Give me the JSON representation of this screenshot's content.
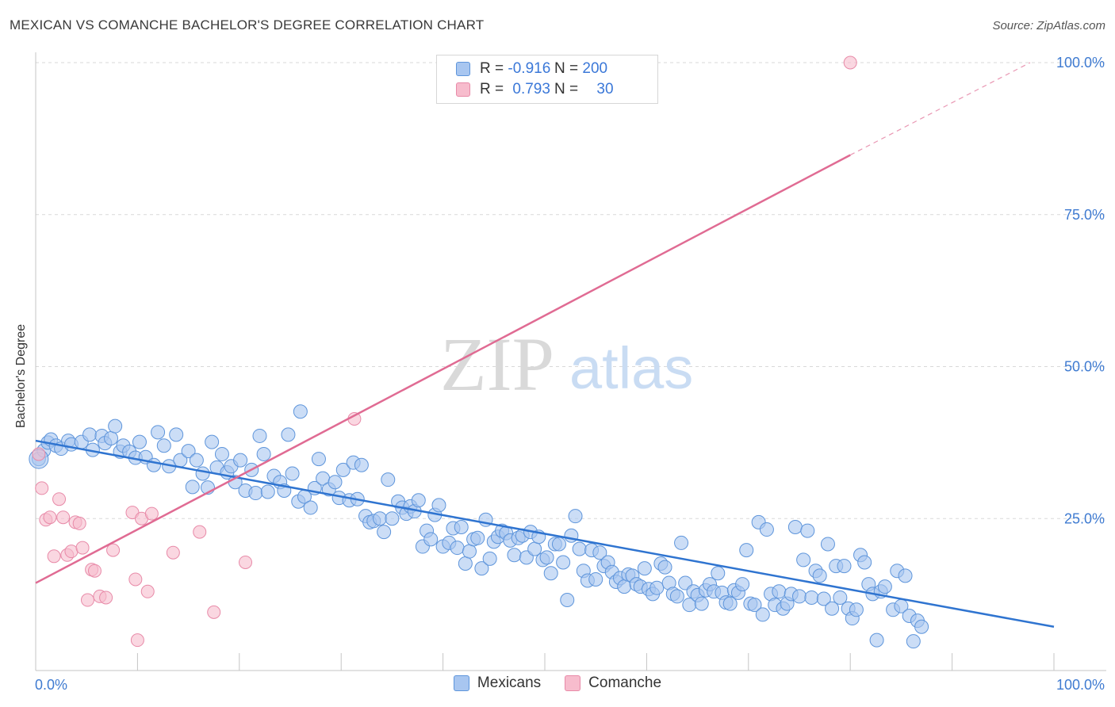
{
  "title": "MEXICAN VS COMANCHE BACHELOR'S DEGREE CORRELATION CHART",
  "source": "Source: ZipAtlas.com",
  "watermark": {
    "zip": "ZIP",
    "atlas": "atlas"
  },
  "legend_top": {
    "rows": [
      {
        "r_label": "R =",
        "r_value": "-0.916",
        "n_label": "N =",
        "n_value": "200"
      },
      {
        "r_label": "R =",
        "r_value": "0.793",
        "n_label": "N =",
        "n_value": "30"
      }
    ]
  },
  "legend_bottom": {
    "series1": "Mexicans",
    "series2": "Comanche"
  },
  "colors": {
    "mexicans_fill": "#a8c6f0",
    "mexicans_stroke": "#5e95db",
    "mexicans_line": "#2f74d0",
    "comanche_fill": "#f7bccd",
    "comanche_stroke": "#e88aa8",
    "comanche_line": "#e06b93",
    "tick_label": "#3f7bd1",
    "grid": "#d9d9d9"
  },
  "chart_data": {
    "type": "scatter",
    "title": "MEXICAN VS COMANCHE BACHELOR'S DEGREE CORRELATION CHART",
    "xlabel": "",
    "ylabel": "Bachelor's Degree",
    "xlim": [
      0,
      100
    ],
    "ylim": [
      0,
      100
    ],
    "x_tick_labels": [
      "0.0%",
      "100.0%"
    ],
    "y_tick_labels": [
      "25.0%",
      "50.0%",
      "75.0%",
      "100.0%"
    ],
    "y_ticks": [
      25,
      50,
      75,
      100
    ],
    "grid": true,
    "legend_position": "top-center",
    "series": [
      {
        "name": "Mexicans",
        "r": -0.916,
        "n": 200,
        "trend": {
          "x0": 0,
          "y0": 37.8,
          "x1": 100,
          "y1": 7.2
        },
        "points": [
          [
            0.3,
            34.8
          ],
          [
            0.8,
            36.2
          ],
          [
            1.2,
            37.5
          ],
          [
            1.5,
            38.0
          ],
          [
            2.0,
            37.0
          ],
          [
            2.5,
            36.5
          ],
          [
            3.2,
            37.8
          ],
          [
            3.5,
            37.2
          ],
          [
            4.5,
            37.6
          ],
          [
            5.3,
            38.8
          ],
          [
            5.6,
            36.3
          ],
          [
            6.5,
            38.6
          ],
          [
            6.8,
            37.4
          ],
          [
            7.4,
            38.2
          ],
          [
            7.8,
            40.2
          ],
          [
            8.3,
            36.0
          ],
          [
            8.6,
            37.0
          ],
          [
            9.2,
            36.0
          ],
          [
            9.8,
            35.0
          ],
          [
            10.2,
            37.6
          ],
          [
            10.8,
            35.1
          ],
          [
            11.6,
            33.8
          ],
          [
            12.0,
            39.2
          ],
          [
            12.6,
            37.0
          ],
          [
            13.1,
            33.6
          ],
          [
            13.8,
            38.8
          ],
          [
            14.2,
            34.6
          ],
          [
            15.0,
            36.1
          ],
          [
            15.4,
            30.2
          ],
          [
            15.8,
            34.6
          ],
          [
            16.4,
            32.4
          ],
          [
            16.9,
            30.1
          ],
          [
            17.3,
            37.6
          ],
          [
            17.8,
            33.4
          ],
          [
            18.3,
            35.6
          ],
          [
            18.8,
            32.6
          ],
          [
            19.2,
            33.6
          ],
          [
            19.6,
            31.0
          ],
          [
            20.1,
            34.6
          ],
          [
            20.6,
            29.6
          ],
          [
            21.2,
            33.0
          ],
          [
            21.6,
            29.2
          ],
          [
            22.0,
            38.6
          ],
          [
            22.4,
            35.6
          ],
          [
            22.8,
            29.4
          ],
          [
            23.4,
            32.0
          ],
          [
            24.0,
            31.0
          ],
          [
            24.4,
            29.6
          ],
          [
            24.8,
            38.8
          ],
          [
            25.2,
            32.4
          ],
          [
            25.8,
            27.8
          ],
          [
            26.0,
            42.6
          ],
          [
            26.4,
            28.6
          ],
          [
            27.0,
            26.8
          ],
          [
            27.4,
            30.0
          ],
          [
            27.8,
            34.8
          ],
          [
            28.2,
            31.6
          ],
          [
            28.8,
            29.8
          ],
          [
            29.4,
            31.0
          ],
          [
            29.8,
            28.4
          ],
          [
            30.2,
            33.0
          ],
          [
            30.8,
            28.0
          ],
          [
            31.2,
            34.2
          ],
          [
            31.6,
            28.2
          ],
          [
            32.0,
            33.8
          ],
          [
            32.4,
            25.4
          ],
          [
            32.8,
            24.4
          ],
          [
            33.2,
            24.6
          ],
          [
            33.8,
            25.0
          ],
          [
            34.2,
            22.8
          ],
          [
            34.6,
            31.4
          ],
          [
            35.0,
            25.0
          ],
          [
            35.6,
            27.8
          ],
          [
            36.0,
            26.8
          ],
          [
            36.4,
            25.8
          ],
          [
            36.8,
            27.0
          ],
          [
            37.2,
            26.2
          ],
          [
            37.6,
            28.0
          ],
          [
            38.0,
            20.4
          ],
          [
            38.4,
            23.0
          ],
          [
            38.8,
            21.6
          ],
          [
            39.2,
            25.6
          ],
          [
            39.6,
            27.2
          ],
          [
            40.0,
            20.4
          ],
          [
            40.6,
            21.0
          ],
          [
            41.0,
            23.4
          ],
          [
            41.4,
            20.2
          ],
          [
            41.8,
            23.6
          ],
          [
            42.2,
            17.6
          ],
          [
            42.6,
            19.6
          ],
          [
            43.0,
            21.6
          ],
          [
            43.4,
            21.8
          ],
          [
            43.8,
            16.8
          ],
          [
            44.2,
            24.8
          ],
          [
            44.6,
            18.4
          ],
          [
            45.0,
            21.2
          ],
          [
            45.4,
            22.0
          ],
          [
            45.8,
            23.0
          ],
          [
            46.2,
            22.6
          ],
          [
            46.6,
            21.4
          ],
          [
            47.0,
            19.0
          ],
          [
            47.4,
            21.8
          ],
          [
            47.8,
            22.2
          ],
          [
            48.2,
            18.6
          ],
          [
            48.6,
            22.8
          ],
          [
            49.0,
            20.0
          ],
          [
            49.4,
            22.0
          ],
          [
            49.8,
            18.2
          ],
          [
            50.2,
            18.6
          ],
          [
            50.6,
            16.0
          ],
          [
            51.0,
            20.8
          ],
          [
            51.4,
            20.8
          ],
          [
            51.8,
            17.8
          ],
          [
            52.2,
            11.6
          ],
          [
            52.6,
            22.2
          ],
          [
            53.0,
            25.4
          ],
          [
            53.4,
            20.0
          ],
          [
            53.8,
            16.4
          ],
          [
            54.2,
            14.8
          ],
          [
            54.6,
            19.8
          ],
          [
            55.0,
            15.0
          ],
          [
            55.4,
            19.4
          ],
          [
            55.8,
            17.2
          ],
          [
            56.2,
            17.8
          ],
          [
            56.6,
            16.2
          ],
          [
            57.0,
            14.6
          ],
          [
            57.4,
            15.2
          ],
          [
            57.8,
            13.8
          ],
          [
            58.2,
            15.8
          ],
          [
            58.6,
            15.6
          ],
          [
            59.0,
            14.2
          ],
          [
            59.4,
            13.8
          ],
          [
            59.8,
            16.8
          ],
          [
            60.2,
            13.4
          ],
          [
            60.6,
            12.6
          ],
          [
            61.0,
            13.6
          ],
          [
            61.4,
            17.6
          ],
          [
            61.8,
            17.0
          ],
          [
            62.2,
            14.4
          ],
          [
            62.6,
            12.6
          ],
          [
            63.0,
            12.2
          ],
          [
            63.4,
            21.0
          ],
          [
            63.8,
            14.4
          ],
          [
            64.2,
            10.8
          ],
          [
            64.6,
            13.0
          ],
          [
            65.0,
            12.4
          ],
          [
            65.4,
            11.0
          ],
          [
            65.8,
            13.2
          ],
          [
            66.2,
            14.2
          ],
          [
            66.6,
            13.0
          ],
          [
            67.0,
            16.0
          ],
          [
            67.4,
            12.8
          ],
          [
            67.8,
            11.2
          ],
          [
            68.2,
            11.0
          ],
          [
            68.6,
            13.2
          ],
          [
            69.0,
            12.8
          ],
          [
            69.4,
            14.2
          ],
          [
            69.8,
            19.8
          ],
          [
            70.2,
            11.0
          ],
          [
            70.6,
            10.8
          ],
          [
            71.0,
            24.4
          ],
          [
            71.4,
            9.2
          ],
          [
            71.8,
            23.2
          ],
          [
            72.2,
            12.6
          ],
          [
            72.6,
            10.8
          ],
          [
            73.0,
            13.0
          ],
          [
            73.4,
            10.2
          ],
          [
            73.8,
            11.0
          ],
          [
            74.2,
            12.6
          ],
          [
            74.6,
            23.6
          ],
          [
            75.0,
            12.2
          ],
          [
            75.4,
            18.2
          ],
          [
            75.8,
            23.0
          ],
          [
            76.2,
            12.0
          ],
          [
            76.6,
            16.4
          ],
          [
            77.0,
            15.6
          ],
          [
            77.4,
            11.8
          ],
          [
            77.8,
            20.8
          ],
          [
            78.2,
            10.2
          ],
          [
            78.6,
            17.2
          ],
          [
            79.0,
            12.0
          ],
          [
            79.4,
            17.2
          ],
          [
            79.8,
            10.2
          ],
          [
            80.2,
            8.6
          ],
          [
            80.6,
            10.0
          ],
          [
            81.0,
            19.0
          ],
          [
            81.4,
            17.8
          ],
          [
            81.8,
            14.2
          ],
          [
            82.2,
            12.6
          ],
          [
            82.6,
            5.0
          ],
          [
            83.0,
            13.0
          ],
          [
            83.4,
            13.8
          ],
          [
            84.2,
            10.0
          ],
          [
            84.6,
            16.4
          ],
          [
            85.0,
            10.6
          ],
          [
            85.4,
            15.6
          ],
          [
            85.8,
            9.0
          ],
          [
            86.2,
            4.8
          ],
          [
            86.6,
            8.2
          ],
          [
            87.0,
            7.2
          ]
        ]
      },
      {
        "name": "Comanche",
        "r": 0.793,
        "n": 30,
        "trend": {
          "x0": 0,
          "y0": 14.4,
          "x1": 80,
          "y1": 84.8,
          "dashed_to": {
            "x": 100,
            "y": 100
          }
        },
        "points": [
          [
            0.3,
            35.6
          ],
          [
            0.6,
            30.0
          ],
          [
            1.0,
            24.8
          ],
          [
            1.4,
            25.2
          ],
          [
            1.8,
            18.8
          ],
          [
            2.3,
            28.2
          ],
          [
            2.7,
            25.2
          ],
          [
            3.1,
            19.0
          ],
          [
            3.5,
            19.6
          ],
          [
            3.9,
            24.4
          ],
          [
            4.3,
            24.2
          ],
          [
            4.6,
            20.2
          ],
          [
            5.1,
            11.6
          ],
          [
            5.5,
            16.6
          ],
          [
            5.8,
            16.4
          ],
          [
            6.3,
            12.2
          ],
          [
            6.9,
            12.0
          ],
          [
            7.6,
            19.8
          ],
          [
            9.5,
            26.0
          ],
          [
            10.0,
            5.0
          ],
          [
            10.4,
            25.0
          ],
          [
            11.0,
            13.0
          ],
          [
            11.4,
            25.8
          ],
          [
            13.5,
            19.4
          ],
          [
            16.1,
            22.8
          ],
          [
            17.5,
            9.6
          ],
          [
            20.6,
            17.8
          ],
          [
            31.3,
            41.4
          ],
          [
            80.0,
            100.0
          ],
          [
            9.8,
            15.0
          ]
        ]
      }
    ]
  }
}
